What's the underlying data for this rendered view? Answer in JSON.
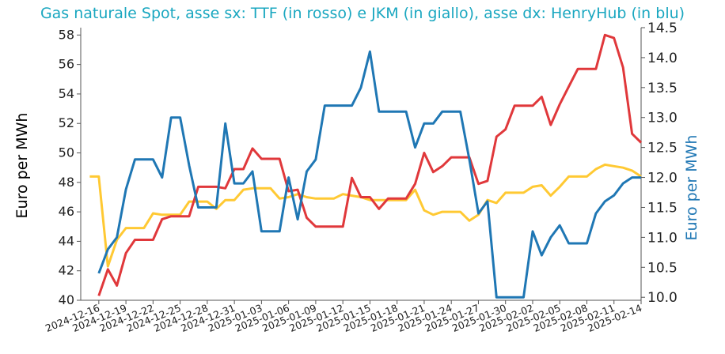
{
  "chart_data": {
    "type": "line",
    "title": "Gas naturale Spot, asse sx: TTF (in rosso) e JKM (in giallo), asse dx: HenryHub (in blu)",
    "ylabel_left": "Euro per MWh",
    "ylabel_right": "Euro per MWh",
    "ylim_left": [
      40,
      58.5
    ],
    "ylim_right": [
      9.95,
      14.5
    ],
    "y_ticks_left": [
      "40",
      "42",
      "44",
      "46",
      "48",
      "50",
      "52",
      "54",
      "56",
      "58"
    ],
    "y_ticks_right": [
      "10.0",
      "10.5",
      "11.0",
      "11.5",
      "12.0",
      "12.5",
      "13.0",
      "13.5",
      "14.0",
      "14.5"
    ],
    "x_ticks": [
      "2024-12-16",
      "2024-12-19",
      "2024-12-22",
      "2024-12-25",
      "2024-12-28",
      "2024-12-31",
      "2025-01-03",
      "2025-01-06",
      "2025-01-09",
      "2025-01-12",
      "2025-01-15",
      "2025-01-18",
      "2025-01-21",
      "2025-01-24",
      "2025-01-27",
      "2025-01-30",
      "2025-02-02",
      "2025-02-05",
      "2025-02-08",
      "2025-02-11",
      "2025-02-14"
    ],
    "grid": false,
    "colors": {
      "TTF": "#e0383b",
      "JKM": "#ffc933",
      "HenryHub": "#1f77b4",
      "title": "#1aa7c0",
      "axis": "#555555"
    },
    "series": [
      {
        "key": "TTF",
        "axis": "left",
        "points": [
          [
            "2024-12-16",
            40.3
          ],
          [
            "2024-12-17",
            42.1
          ],
          [
            "2024-12-18",
            41.0
          ],
          [
            "2024-12-19",
            43.2
          ],
          [
            "2024-12-20",
            44.1
          ],
          [
            "2024-12-21",
            44.1
          ],
          [
            "2024-12-22",
            44.1
          ],
          [
            "2024-12-23",
            45.5
          ],
          [
            "2024-12-24",
            45.7
          ],
          [
            "2024-12-25",
            45.7
          ],
          [
            "2024-12-26",
            45.7
          ],
          [
            "2024-12-27",
            47.7
          ],
          [
            "2024-12-28",
            47.7
          ],
          [
            "2024-12-29",
            47.7
          ],
          [
            "2024-12-30",
            47.6
          ],
          [
            "2024-12-31",
            48.9
          ],
          [
            "2025-01-01",
            48.9
          ],
          [
            "2025-01-02",
            50.3
          ],
          [
            "2025-01-03",
            49.6
          ],
          [
            "2025-01-04",
            49.6
          ],
          [
            "2025-01-05",
            49.6
          ],
          [
            "2025-01-06",
            47.4
          ],
          [
            "2025-01-07",
            47.5
          ],
          [
            "2025-01-08",
            45.6
          ],
          [
            "2025-01-09",
            45.0
          ],
          [
            "2025-01-10",
            45.0
          ],
          [
            "2025-01-11",
            45.0
          ],
          [
            "2025-01-12",
            45.0
          ],
          [
            "2025-01-13",
            48.3
          ],
          [
            "2025-01-14",
            47.0
          ],
          [
            "2025-01-15",
            47.0
          ],
          [
            "2025-01-16",
            46.2
          ],
          [
            "2025-01-17",
            46.9
          ],
          [
            "2025-01-18",
            46.9
          ],
          [
            "2025-01-19",
            46.9
          ],
          [
            "2025-01-20",
            47.9
          ],
          [
            "2025-01-21",
            50.0
          ],
          [
            "2025-01-22",
            48.7
          ],
          [
            "2025-01-23",
            49.1
          ],
          [
            "2025-01-24",
            49.7
          ],
          [
            "2025-01-25",
            49.7
          ],
          [
            "2025-01-26",
            49.7
          ],
          [
            "2025-01-27",
            47.9
          ],
          [
            "2025-01-28",
            48.1
          ],
          [
            "2025-01-29",
            51.1
          ],
          [
            "2025-01-30",
            51.6
          ],
          [
            "2025-01-31",
            53.2
          ],
          [
            "2025-02-01",
            53.2
          ],
          [
            "2025-02-02",
            53.2
          ],
          [
            "2025-02-03",
            53.8
          ],
          [
            "2025-02-04",
            51.9
          ],
          [
            "2025-02-05",
            53.3
          ],
          [
            "2025-02-06",
            54.5
          ],
          [
            "2025-02-07",
            55.7
          ],
          [
            "2025-02-08",
            55.7
          ],
          [
            "2025-02-09",
            55.7
          ],
          [
            "2025-02-10",
            58.0
          ],
          [
            "2025-02-11",
            57.8
          ],
          [
            "2025-02-12",
            55.8
          ],
          [
            "2025-02-13",
            51.3
          ],
          [
            "2025-02-14",
            50.7
          ]
        ]
      },
      {
        "key": "JKM",
        "axis": "left",
        "points": [
          [
            "2024-12-15",
            48.4
          ],
          [
            "2024-12-16",
            48.4
          ],
          [
            "2024-12-17",
            42.3
          ],
          [
            "2024-12-18",
            44.1
          ],
          [
            "2024-12-19",
            44.9
          ],
          [
            "2024-12-20",
            44.9
          ],
          [
            "2024-12-21",
            44.9
          ],
          [
            "2024-12-22",
            45.9
          ],
          [
            "2024-12-23",
            45.8
          ],
          [
            "2024-12-24",
            45.8
          ],
          [
            "2024-12-25",
            45.8
          ],
          [
            "2024-12-26",
            46.7
          ],
          [
            "2024-12-27",
            46.7
          ],
          [
            "2024-12-28",
            46.7
          ],
          [
            "2024-12-29",
            46.2
          ],
          [
            "2024-12-30",
            46.8
          ],
          [
            "2024-12-31",
            46.8
          ],
          [
            "2025-01-01",
            47.5
          ],
          [
            "2025-01-02",
            47.6
          ],
          [
            "2025-01-03",
            47.6
          ],
          [
            "2025-01-04",
            47.6
          ],
          [
            "2025-01-05",
            46.9
          ],
          [
            "2025-01-06",
            47.0
          ],
          [
            "2025-01-07",
            47.2
          ],
          [
            "2025-01-08",
            47.0
          ],
          [
            "2025-01-09",
            46.9
          ],
          [
            "2025-01-10",
            46.9
          ],
          [
            "2025-01-11",
            46.9
          ],
          [
            "2025-01-12",
            47.2
          ],
          [
            "2025-01-13",
            47.1
          ],
          [
            "2025-01-14",
            47.0
          ],
          [
            "2025-01-15",
            46.8
          ],
          [
            "2025-01-16",
            46.8
          ],
          [
            "2025-01-17",
            46.8
          ],
          [
            "2025-01-18",
            46.8
          ],
          [
            "2025-01-19",
            46.8
          ],
          [
            "2025-01-20",
            47.5
          ],
          [
            "2025-01-21",
            46.1
          ],
          [
            "2025-01-22",
            45.8
          ],
          [
            "2025-01-23",
            46.0
          ],
          [
            "2025-01-24",
            46.0
          ],
          [
            "2025-01-25",
            46.0
          ],
          [
            "2025-01-26",
            45.4
          ],
          [
            "2025-01-27",
            45.8
          ],
          [
            "2025-01-28",
            46.8
          ],
          [
            "2025-01-29",
            46.6
          ],
          [
            "2025-01-30",
            47.3
          ],
          [
            "2025-01-31",
            47.3
          ],
          [
            "2025-02-01",
            47.3
          ],
          [
            "2025-02-02",
            47.7
          ],
          [
            "2025-02-03",
            47.8
          ],
          [
            "2025-02-04",
            47.1
          ],
          [
            "2025-02-05",
            47.7
          ],
          [
            "2025-02-06",
            48.4
          ],
          [
            "2025-02-07",
            48.4
          ],
          [
            "2025-02-08",
            48.4
          ],
          [
            "2025-02-09",
            48.9
          ],
          [
            "2025-02-10",
            49.2
          ],
          [
            "2025-02-11",
            49.1
          ],
          [
            "2025-02-12",
            49.0
          ],
          [
            "2025-02-13",
            48.8
          ],
          [
            "2025-02-14",
            48.4
          ]
        ]
      },
      {
        "key": "HenryHub",
        "axis": "right",
        "points": [
          [
            "2024-12-16",
            10.4
          ],
          [
            "2024-12-17",
            10.8
          ],
          [
            "2024-12-18",
            11.0
          ],
          [
            "2024-12-19",
            11.8
          ],
          [
            "2024-12-20",
            12.3
          ],
          [
            "2024-12-21",
            12.3
          ],
          [
            "2024-12-22",
            12.3
          ],
          [
            "2024-12-23",
            12.0
          ],
          [
            "2024-12-24",
            13.0
          ],
          [
            "2024-12-25",
            13.0
          ],
          [
            "2024-12-26",
            12.2
          ],
          [
            "2024-12-27",
            11.5
          ],
          [
            "2024-12-28",
            11.5
          ],
          [
            "2024-12-29",
            11.5
          ],
          [
            "2024-12-30",
            12.9
          ],
          [
            "2024-12-31",
            11.9
          ],
          [
            "2025-01-01",
            11.9
          ],
          [
            "2025-01-02",
            12.1
          ],
          [
            "2025-01-03",
            11.1
          ],
          [
            "2025-01-04",
            11.1
          ],
          [
            "2025-01-05",
            11.1
          ],
          [
            "2025-01-06",
            12.0
          ],
          [
            "2025-01-07",
            11.3
          ],
          [
            "2025-01-08",
            12.1
          ],
          [
            "2025-01-09",
            12.3
          ],
          [
            "2025-01-10",
            13.2
          ],
          [
            "2025-01-11",
            13.2
          ],
          [
            "2025-01-12",
            13.2
          ],
          [
            "2025-01-13",
            13.2
          ],
          [
            "2025-01-14",
            13.5
          ],
          [
            "2025-01-15",
            14.1
          ],
          [
            "2025-01-16",
            13.1
          ],
          [
            "2025-01-17",
            13.1
          ],
          [
            "2025-01-18",
            13.1
          ],
          [
            "2025-01-19",
            13.1
          ],
          [
            "2025-01-20",
            12.5
          ],
          [
            "2025-01-21",
            12.9
          ],
          [
            "2025-01-22",
            12.9
          ],
          [
            "2025-01-23",
            13.1
          ],
          [
            "2025-01-24",
            13.1
          ],
          [
            "2025-01-25",
            13.1
          ],
          [
            "2025-01-26",
            12.3
          ],
          [
            "2025-01-27",
            11.4
          ],
          [
            "2025-01-28",
            11.6
          ],
          [
            "2025-01-29",
            10.0
          ],
          [
            "2025-01-30",
            10.0
          ],
          [
            "2025-01-31",
            10.0
          ],
          [
            "2025-02-01",
            10.0
          ],
          [
            "2025-02-02",
            11.1
          ],
          [
            "2025-02-03",
            10.7
          ],
          [
            "2025-02-04",
            11.0
          ],
          [
            "2025-02-05",
            11.2
          ],
          [
            "2025-02-06",
            10.9
          ],
          [
            "2025-02-07",
            10.9
          ],
          [
            "2025-02-08",
            10.9
          ],
          [
            "2025-02-09",
            11.4
          ],
          [
            "2025-02-10",
            11.6
          ],
          [
            "2025-02-11",
            11.7
          ],
          [
            "2025-02-12",
            11.9
          ],
          [
            "2025-02-13",
            12.0
          ],
          [
            "2025-02-14",
            12.0
          ]
        ]
      }
    ]
  }
}
